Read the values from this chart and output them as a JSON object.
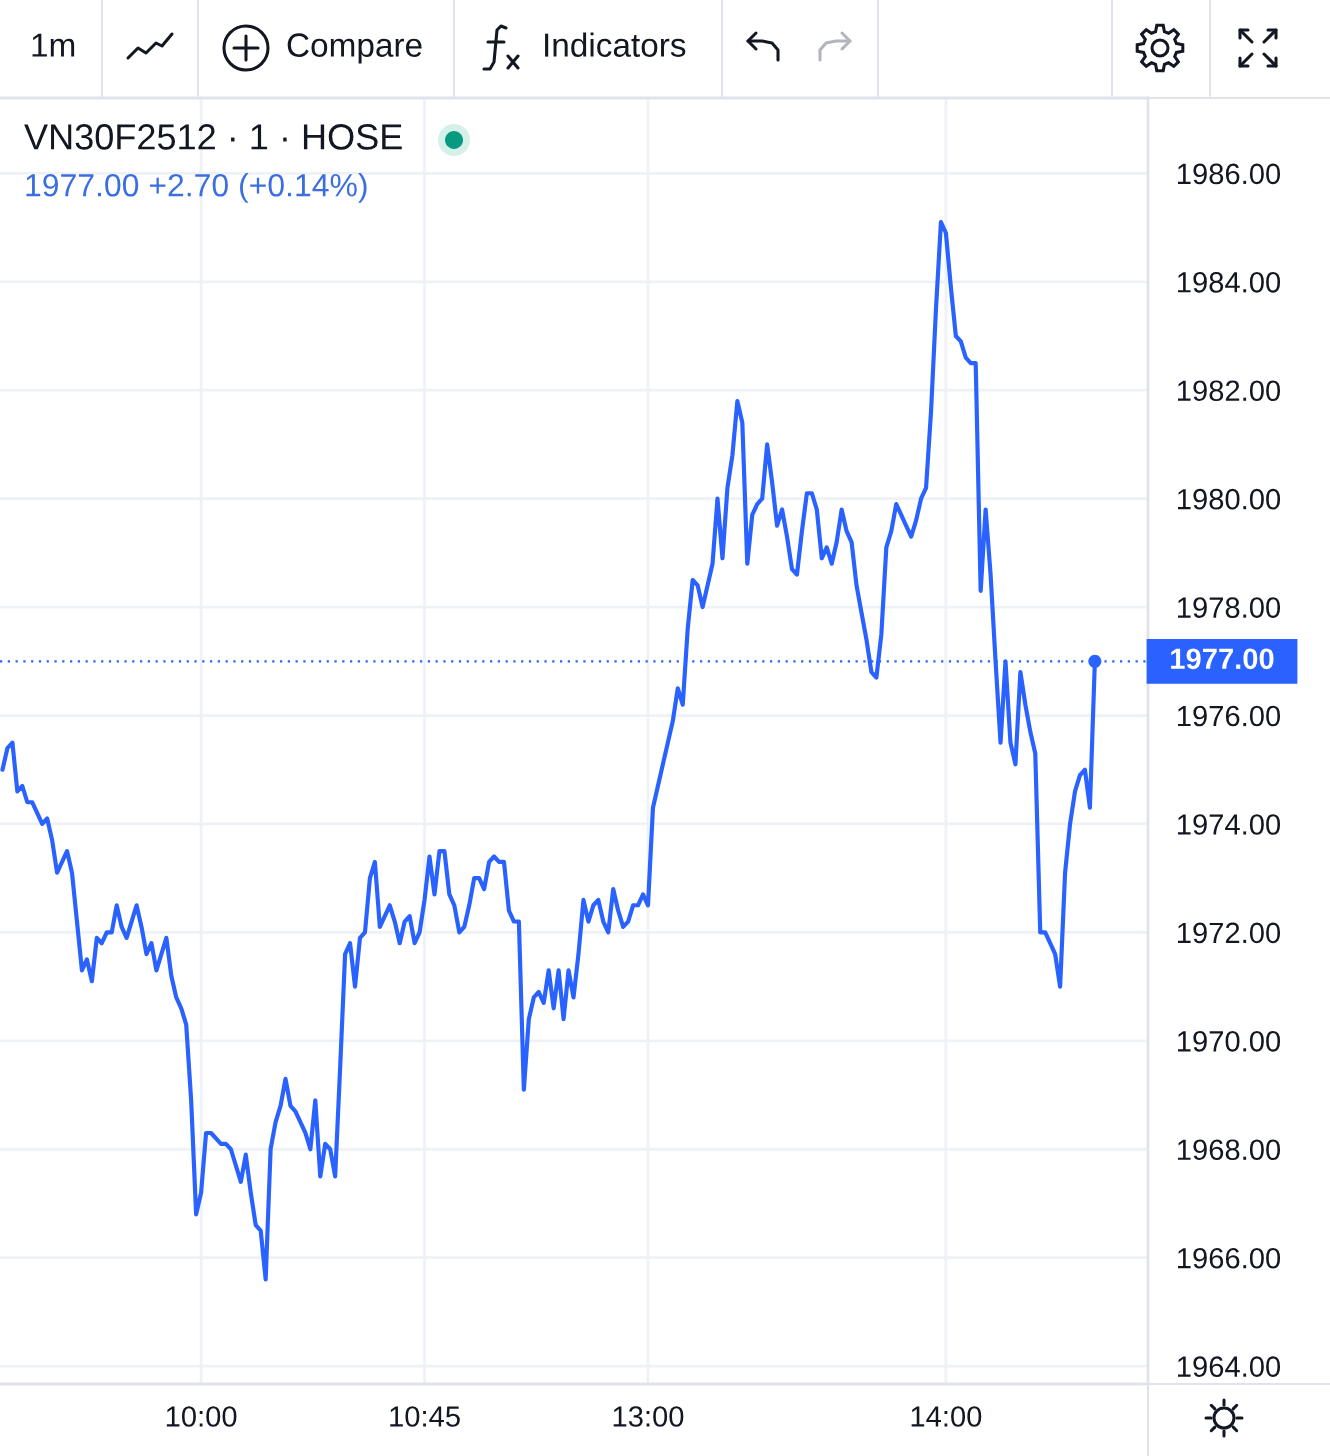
{
  "chart_data": {
    "type": "line",
    "title": "VN30F2512 · 1 · HOSE",
    "subtitle": "1977.00 +2.70 (+0.14%)",
    "annotations": [
      "1m",
      "Compare",
      "Indicators"
    ],
    "categories": [
      null,
      null,
      null,
      null,
      null,
      null,
      null,
      null,
      null,
      null,
      null,
      null,
      null,
      null,
      null,
      null,
      null,
      null,
      null,
      null,
      null,
      null,
      null,
      null,
      null,
      null,
      null,
      null,
      null,
      null,
      null,
      null,
      null,
      null,
      null,
      null,
      null,
      null,
      null,
      null,
      "10:00",
      null,
      null,
      null,
      null,
      null,
      null,
      null,
      null,
      null,
      null,
      null,
      null,
      null,
      null,
      null,
      null,
      null,
      null,
      null,
      null,
      null,
      null,
      null,
      null,
      null,
      null,
      null,
      null,
      null,
      null,
      null,
      null,
      null,
      null,
      null,
      null,
      null,
      null,
      null,
      null,
      null,
      null,
      null,
      null,
      "10:45",
      null,
      null,
      null,
      null,
      null,
      null,
      null,
      null,
      null,
      null,
      null,
      null,
      null,
      null,
      null,
      null,
      null,
      null,
      null,
      null,
      null,
      null,
      null,
      null,
      null,
      null,
      null,
      null,
      null,
      null,
      null,
      null,
      null,
      null,
      null,
      null,
      null,
      null,
      null,
      null,
      null,
      null,
      null,
      null,
      "13:00",
      null,
      null,
      null,
      null,
      null,
      null,
      null,
      null,
      null,
      null,
      null,
      null,
      null,
      null,
      null,
      null,
      null,
      null,
      null,
      null,
      null,
      null,
      null,
      null,
      null,
      null,
      null,
      null,
      null,
      null,
      null,
      null,
      null,
      null,
      null,
      null,
      null,
      null,
      null,
      null,
      null,
      null,
      null,
      null,
      null,
      null,
      null,
      null,
      null,
      null,
      null,
      null,
      null,
      null,
      null,
      null,
      null,
      null,
      null,
      "14:00",
      null,
      null,
      null,
      null,
      null,
      null,
      null,
      null,
      null,
      null,
      null,
      null,
      null,
      null,
      null,
      null,
      null,
      null,
      null,
      null,
      null,
      null,
      null,
      null,
      null,
      null,
      null,
      null,
      null,
      null
    ],
    "series": [
      {
        "color": "#2962ff",
        "values": [
          1975.0,
          1975.4,
          1975.5,
          1974.6,
          1974.7,
          1974.4,
          1974.4,
          1974.2,
          1974.0,
          1974.1,
          1973.7,
          1973.1,
          1973.3,
          1973.5,
          1973.1,
          1972.2,
          1971.3,
          1971.5,
          1971.1,
          1971.9,
          1971.8,
          1972.0,
          1972.0,
          1972.5,
          1972.1,
          1971.9,
          1972.2,
          1972.5,
          1972.1,
          1971.6,
          1971.8,
          1971.3,
          1971.6,
          1971.9,
          1971.2,
          1970.8,
          1970.6,
          1970.3,
          1968.9,
          1966.8,
          1967.2,
          1968.3,
          1968.3,
          1968.2,
          1968.1,
          1968.1,
          1968.0,
          1967.7,
          1967.4,
          1967.9,
          1967.2,
          1966.6,
          1966.5,
          1965.6,
          1968.0,
          1968.5,
          1968.8,
          1969.3,
          1968.8,
          1968.7,
          1968.5,
          1968.3,
          1968.0,
          1968.9,
          1967.5,
          1968.1,
          1968.0,
          1967.5,
          1969.5,
          1971.6,
          1971.8,
          1971.0,
          1971.9,
          1972.0,
          1973.0,
          1973.3,
          1972.1,
          1972.3,
          1972.5,
          1972.2,
          1971.8,
          1972.2,
          1972.3,
          1971.8,
          1972.0,
          1972.6,
          1973.4,
          1972.7,
          1973.5,
          1973.5,
          1972.7,
          1972.5,
          1972.0,
          1972.1,
          1972.5,
          1973.0,
          1973.0,
          1972.8,
          1973.3,
          1973.4,
          1973.3,
          1973.3,
          1972.4,
          1972.2,
          1972.2,
          1969.1,
          1970.4,
          1970.8,
          1970.9,
          1970.7,
          1971.3,
          1970.6,
          1971.3,
          1970.4,
          1971.3,
          1970.8,
          1971.6,
          1972.6,
          1972.2,
          1972.5,
          1972.6,
          1972.2,
          1972.0,
          1972.8,
          1972.4,
          1972.1,
          1972.2,
          1972.5,
          1972.5,
          1972.7,
          1972.5,
          1974.3,
          1974.7,
          1975.1,
          1975.5,
          1975.9,
          1976.5,
          1976.2,
          1977.6,
          1978.5,
          1978.4,
          1978.0,
          1978.4,
          1978.8,
          1980.0,
          1978.9,
          1980.2,
          1980.8,
          1981.8,
          1981.4,
          1978.8,
          1979.7,
          1979.9,
          1980.0,
          1981.0,
          1980.3,
          1979.5,
          1979.8,
          1979.3,
          1978.7,
          1978.6,
          1979.4,
          1980.1,
          1980.1,
          1979.8,
          1978.9,
          1979.1,
          1978.8,
          1979.2,
          1979.8,
          1979.4,
          1979.2,
          1978.4,
          1977.9,
          1977.4,
          1976.8,
          1976.7,
          1977.5,
          1979.1,
          1979.4,
          1979.9,
          1979.7,
          1979.5,
          1979.3,
          1979.6,
          1980.0,
          1980.2,
          1981.6,
          1983.5,
          1985.1,
          1984.9,
          1983.9,
          1983.0,
          1982.9,
          1982.6,
          1982.5,
          1982.5,
          1978.3,
          1979.8,
          1978.6,
          1977.0,
          1975.5,
          1977.0,
          1975.5,
          1975.1,
          1976.8,
          1976.2,
          1975.7,
          1975.3,
          1972.0,
          1972.0,
          1971.8,
          1971.6,
          1971.0,
          1973.1,
          1974.0,
          1974.6,
          1974.9,
          1975.0,
          1974.3,
          1977.0
        ]
      },
      {
        "type": "scatter",
        "color": "#2962ff",
        "marker": "circle",
        "values": [
          null,
          null,
          null,
          null,
          null,
          null,
          null,
          null,
          null,
          null,
          null,
          null,
          null,
          null,
          null,
          null,
          null,
          null,
          null,
          null,
          null,
          null,
          null,
          null,
          null,
          null,
          null,
          null,
          null,
          null,
          null,
          null,
          null,
          null,
          null,
          null,
          null,
          null,
          null,
          null,
          null,
          null,
          null,
          null,
          null,
          null,
          null,
          null,
          null,
          null,
          null,
          null,
          null,
          null,
          null,
          null,
          null,
          null,
          null,
          null,
          null,
          null,
          null,
          null,
          null,
          null,
          null,
          null,
          null,
          null,
          null,
          null,
          null,
          null,
          null,
          null,
          null,
          null,
          null,
          null,
          null,
          null,
          null,
          null,
          null,
          null,
          null,
          null,
          null,
          null,
          null,
          null,
          null,
          null,
          null,
          null,
          null,
          null,
          null,
          null,
          null,
          null,
          null,
          null,
          null,
          null,
          null,
          null,
          null,
          null,
          null,
          null,
          null,
          null,
          null,
          null,
          null,
          null,
          null,
          null,
          null,
          null,
          null,
          null,
          null,
          null,
          null,
          null,
          null,
          null,
          null,
          null,
          null,
          null,
          null,
          null,
          null,
          null,
          null,
          null,
          null,
          null,
          null,
          null,
          null,
          null,
          null,
          null,
          null,
          null,
          null,
          null,
          null,
          null,
          null,
          null,
          null,
          null,
          null,
          null,
          null,
          null,
          null,
          null,
          null,
          null,
          null,
          null,
          null,
          null,
          null,
          null,
          null,
          null,
          null,
          null,
          null,
          null,
          null,
          null,
          null,
          null,
          null,
          null,
          null,
          null,
          null,
          null,
          null,
          null,
          null,
          null,
          null,
          null,
          null,
          null,
          null,
          null,
          null,
          null,
          null,
          null,
          null,
          null,
          null,
          null,
          null,
          null,
          null,
          null,
          null,
          null,
          null,
          null,
          null,
          null,
          null,
          null,
          null,
          null,
          1977.0
        ]
      }
    ],
    "ylim": [
      1963.67,
      1987.39
    ],
    "yticks": [
      {
        "value": 1964,
        "label": "1964.00"
      },
      {
        "value": 1966,
        "label": "1966.00"
      },
      {
        "value": 1968,
        "label": "1968.00"
      },
      {
        "value": 1970,
        "label": "1970.00"
      },
      {
        "value": 1972,
        "label": "1972.00"
      },
      {
        "value": 1974,
        "label": "1974.00"
      },
      {
        "value": 1976,
        "label": "1976.00"
      },
      {
        "value": 1978,
        "label": "1978.00"
      },
      {
        "value": 1980,
        "label": "1980.00"
      },
      {
        "value": 1982,
        "label": "1982.00"
      },
      {
        "value": 1984,
        "label": "1984.00"
      },
      {
        "value": 1986,
        "label": "1986.00"
      }
    ],
    "grid": true,
    "ref_lines": [
      {
        "axis": "y",
        "value": 1977,
        "label": "1977.00",
        "color": "#2962ff",
        "line_style": "dotted"
      }
    ]
  }
}
